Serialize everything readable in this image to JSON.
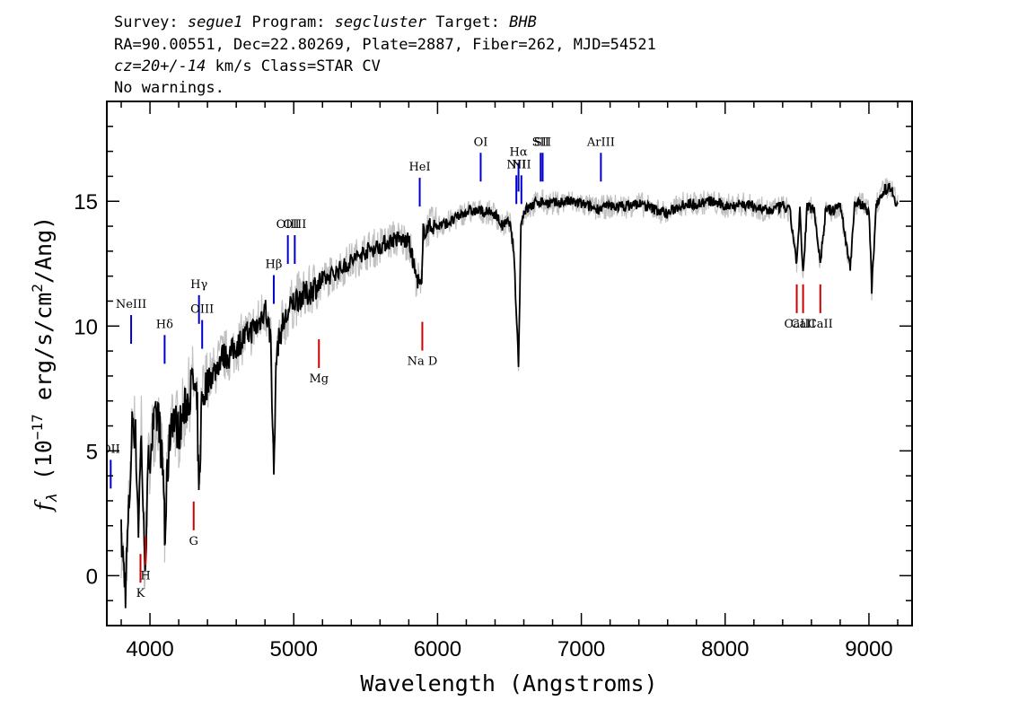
{
  "header": {
    "line1": {
      "survey_label": "Survey: ",
      "survey": "segue1",
      "program_label": " Program: ",
      "program": "segcluster",
      "target_label": " Target: ",
      "target": "BHB"
    },
    "line2": "RA=90.00551, Dec=22.80269, Plate=2887, Fiber=262, MJD=54521",
    "line3": {
      "cz_label": "cz",
      "cz_value": "=20+/-14",
      "rest": " km/s Class=STAR CV"
    },
    "line4": "No warnings."
  },
  "chart_data": {
    "type": "line",
    "xlabel": "Wavelength (Angstroms)",
    "ylabel": {
      "f": "f",
      "sub": "λ",
      "pre": " (10",
      "exp": "−17",
      "mid": " erg/s/cm",
      "exp2": "2",
      "post": "/Ang)"
    },
    "xlim": [
      3700,
      9300
    ],
    "ylim": [
      -2,
      19
    ],
    "x_ticks": [
      4000,
      5000,
      6000,
      7000,
      8000,
      9000
    ],
    "x_tick_labels": [
      "4000",
      "5000",
      "6000",
      "7000",
      "8000",
      "9000"
    ],
    "y_ticks": [
      0,
      5,
      10,
      15
    ],
    "y_tick_labels": [
      "0",
      "5",
      "10",
      "15"
    ],
    "series": [
      {
        "color": "#000000",
        "x": [
          3800,
          3830,
          3860,
          3880,
          3900,
          3920,
          3940,
          3960,
          3970,
          3990,
          4020,
          4060,
          4080,
          4100,
          4102,
          4120,
          4150,
          4200,
          4250,
          4300,
          4330,
          4340,
          4360,
          4400,
          4450,
          4500,
          4550,
          4600,
          4650,
          4700,
          4750,
          4800,
          4840,
          4861,
          4880,
          4920,
          4960,
          5000,
          5050,
          5100,
          5150,
          5200,
          5300,
          5400,
          5500,
          5600,
          5700,
          5800,
          5850,
          5890,
          5900,
          5950,
          6000,
          6100,
          6200,
          6300,
          6400,
          6450,
          6500,
          6530,
          6563,
          6580,
          6600,
          6650,
          6700,
          6800,
          6900,
          7000,
          7100,
          7200,
          7300,
          7400,
          7500,
          7600,
          7700,
          7800,
          7900,
          8000,
          8100,
          8200,
          8300,
          8400,
          8450,
          8498,
          8520,
          8542,
          8570,
          8620,
          8662,
          8700,
          8750,
          8800,
          8870,
          8900,
          8950,
          9000,
          9020,
          9050,
          9100,
          9150,
          9200
        ],
        "y": [
          1.5,
          -0.5,
          3.5,
          6.5,
          5.5,
          2.0,
          5.8,
          0.8,
          1.0,
          4.5,
          5.8,
          6.5,
          4.8,
          3.2,
          1.0,
          4.0,
          6.5,
          5.8,
          6.8,
          7.8,
          6.5,
          3.0,
          7.0,
          7.8,
          8.2,
          8.8,
          8.8,
          9.2,
          9.5,
          9.8,
          10.0,
          10.8,
          9.5,
          4.0,
          9.0,
          10.0,
          10.5,
          11.0,
          11.2,
          11.3,
          11.6,
          11.8,
          12.2,
          12.6,
          13.0,
          13.2,
          13.5,
          13.4,
          12.0,
          11.5,
          13.8,
          14.0,
          14.0,
          14.2,
          14.6,
          14.6,
          14.5,
          14.0,
          14.2,
          13.0,
          8.5,
          14.0,
          14.6,
          14.8,
          15.0,
          14.9,
          15.0,
          14.9,
          14.7,
          14.8,
          14.8,
          14.9,
          14.7,
          14.5,
          14.9,
          14.9,
          15.0,
          14.8,
          14.9,
          14.8,
          14.6,
          14.8,
          14.6,
          12.5,
          14.6,
          12.0,
          14.8,
          14.7,
          12.5,
          14.7,
          14.6,
          14.9,
          12.3,
          14.9,
          14.9,
          14.6,
          11.5,
          14.9,
          15.4,
          15.6,
          14.8
        ]
      }
    ],
    "emission_lines": [
      {
        "name": "OII",
        "x": 3727,
        "y_label": 5.0
      },
      {
        "name": "NeIII",
        "x": 3869,
        "y_label": 10.8
      },
      {
        "name": "Hδ",
        "x": 4102,
        "y_label": 10.0
      },
      {
        "name": "Hγ",
        "x": 4341,
        "y_label": 11.6
      },
      {
        "name": "OIII",
        "x": 4363,
        "y_label": 10.6
      },
      {
        "name": "Hβ",
        "x": 4861,
        "y_label": 12.4
      },
      {
        "name": "OIII",
        "x": 4959,
        "y_label": 14.0
      },
      {
        "name": "OIII",
        "x": 5007,
        "y_label": 14.0
      },
      {
        "name": "HeI",
        "x": 5876,
        "y_label": 16.3
      },
      {
        "name": "OI",
        "x": 6300,
        "y_label": 17.3
      },
      {
        "name": "NII",
        "x": 6548,
        "y_label": 16.4
      },
      {
        "name": "Hα",
        "x": 6563,
        "y_label": 16.9
      },
      {
        "name": "NII",
        "x": 6583,
        "y_label": 16.4
      },
      {
        "name": "SII",
        "x": 6717,
        "y_label": 17.3
      },
      {
        "name": "SII",
        "x": 6731,
        "y_label": 17.3
      },
      {
        "name": "ArIII",
        "x": 7136,
        "y_label": 17.3
      }
    ],
    "absorption_lines": [
      {
        "name": "K",
        "x": 3934,
        "y_label": -1.0
      },
      {
        "name": "H",
        "x": 3969,
        "y_label": -0.3
      },
      {
        "name": "G",
        "x": 4304,
        "y_label": 1.1
      },
      {
        "name": "Mg",
        "x": 5175,
        "y_label": 7.6
      },
      {
        "name": "Na D",
        "x": 5894,
        "y_label": 8.3
      },
      {
        "name": "CaII",
        "x": 8498,
        "y_label": 9.8
      },
      {
        "name": "CaII",
        "x": 8542,
        "y_label": 9.8
      },
      {
        "name": "CaII",
        "x": 8662,
        "y_label": 9.8
      }
    ],
    "colors": {
      "flux": "#000000",
      "error_band": "#c0c0c0",
      "emission": "#0000cc",
      "absorption": "#cc0000",
      "axes": "#000000"
    }
  }
}
